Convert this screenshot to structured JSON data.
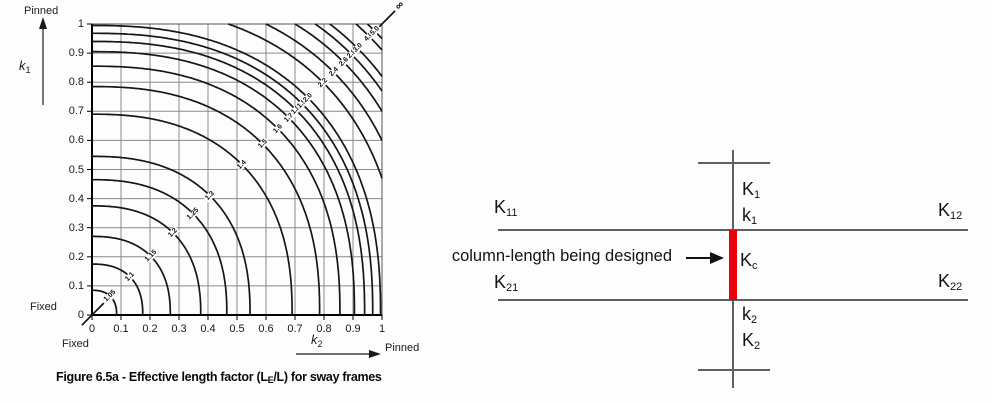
{
  "figure": {
    "caption": {
      "prefix": "Figure 6.5a - Effective length factor (L",
      "sub": "E",
      "suffix": "/L) for sway frames"
    }
  },
  "chart_data": {
    "type": "contour",
    "title": "Effective length factor (LE/L) for sway frames",
    "xlabel": {
      "main": "k",
      "sub": "2"
    },
    "ylabel": {
      "main": "k",
      "sub": "1"
    },
    "x_range": [
      0,
      1
    ],
    "y_range": [
      0,
      1
    ],
    "grid": true,
    "x_ticks": [
      "0",
      "0.1",
      "0.2",
      "0.3",
      "0.4",
      "0.5",
      "0.6",
      "0.7",
      "0.8",
      "0.9",
      "1"
    ],
    "y_ticks": [
      "1",
      "0.9",
      "0.8",
      "0.7",
      "0.6",
      "0.5",
      "0.4",
      "0.3",
      "0.2",
      "0.1",
      "0"
    ],
    "x_axis_ends": {
      "min": "Fixed",
      "max": "Pinned"
    },
    "y_axis_ends": {
      "min": "Fixed",
      "max": "Pinned"
    },
    "superellipse_n": 2.4,
    "line_color": "#161616",
    "grid_color": "#8a8a8a",
    "contours": [
      {
        "label": "1.0",
        "r": 0
      },
      {
        "label": "1.05",
        "r": 0.085
      },
      {
        "label": "1.1",
        "r": 0.175
      },
      {
        "label": "1.15",
        "r": 0.27
      },
      {
        "label": "1.2",
        "r": 0.375
      },
      {
        "label": "1.25",
        "r": 0.465
      },
      {
        "label": "1.3",
        "r": 0.545
      },
      {
        "label": "1.4",
        "r": 0.69
      },
      {
        "label": "1.5",
        "r": 0.785
      },
      {
        "label": "1.6",
        "r": 0.855
      },
      {
        "label": "1.7",
        "r": 0.905
      },
      {
        "label": "1.8",
        "r": 0.94
      },
      {
        "label": "1.9",
        "r": 0.968
      },
      {
        "label": "2.0",
        "r": 0.995
      },
      {
        "label": "2.2",
        "r": 1.065
      },
      {
        "label": "2.4",
        "r": 1.113
      },
      {
        "label": "2.6",
        "r": 1.159
      },
      {
        "label": "2.8",
        "r": 1.195
      },
      {
        "label": "3.0",
        "r": 1.223
      },
      {
        "label": "4.0",
        "r": 1.277
      },
      {
        "label": "5.0",
        "r": 1.302
      },
      {
        "label": "∞",
        "r": null
      }
    ]
  },
  "diagram": {
    "annotation": "column-length being designed",
    "highlight_color": "#e8000b",
    "labels": {
      "top_column": {
        "main": "K",
        "sub": "1"
      },
      "top_joint": {
        "main": "k",
        "sub": "1"
      },
      "beam_top_left": {
        "main": "K",
        "sub": "11"
      },
      "beam_top_right": {
        "main": "K",
        "sub": "12"
      },
      "column_designed": {
        "main": "K",
        "sub": "c"
      },
      "beam_bottom_left": {
        "main": "K",
        "sub": "21"
      },
      "beam_bottom_right": {
        "main": "K",
        "sub": "22"
      },
      "bottom_joint": {
        "main": "k",
        "sub": "2"
      },
      "bottom_column": {
        "main": "K",
        "sub": "2"
      }
    }
  }
}
